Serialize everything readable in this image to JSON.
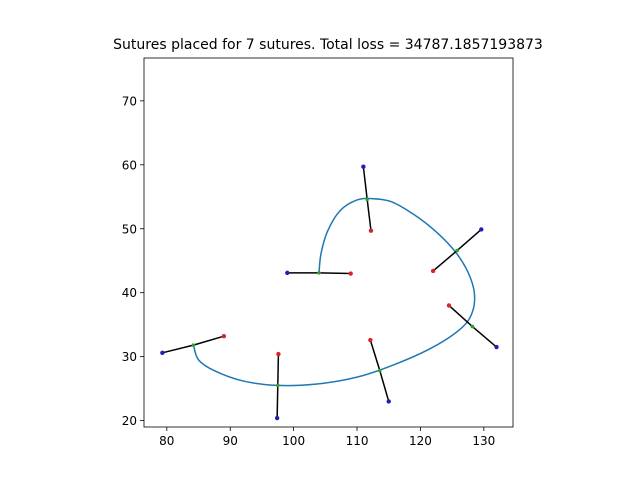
{
  "chart_data": {
    "type": "line",
    "title": "Sutures placed for 7 sutures. Total loss = 34787.1857193873",
    "xlabel": "",
    "ylabel": "",
    "xlim": [
      76.4,
      134.6
    ],
    "ylim": [
      19.0,
      76.7
    ],
    "x_ticks": [
      80,
      90,
      100,
      110,
      120,
      130
    ],
    "y_ticks": [
      20,
      30,
      40,
      50,
      60,
      70
    ],
    "grid": false,
    "colors": {
      "curve": "#1f77b4",
      "suture": "#000000",
      "insertion": "#d62728",
      "extraction": "#1f1fb4"
    },
    "wound_curve": [
      {
        "x": 104.0,
        "y": 43.0
      },
      {
        "x": 104.3,
        "y": 46.0
      },
      {
        "x": 105.3,
        "y": 49.5
      },
      {
        "x": 107.3,
        "y": 52.8
      },
      {
        "x": 110.0,
        "y": 54.5
      },
      {
        "x": 112.5,
        "y": 54.7
      },
      {
        "x": 115.5,
        "y": 54.2
      },
      {
        "x": 119.0,
        "y": 52.2
      },
      {
        "x": 122.5,
        "y": 49.5
      },
      {
        "x": 125.5,
        "y": 46.4
      },
      {
        "x": 127.5,
        "y": 43.2
      },
      {
        "x": 128.5,
        "y": 40.0
      },
      {
        "x": 128.2,
        "y": 37.0
      },
      {
        "x": 126.5,
        "y": 34.5
      },
      {
        "x": 122.0,
        "y": 31.5
      },
      {
        "x": 116.0,
        "y": 28.8
      },
      {
        "x": 110.0,
        "y": 26.8
      },
      {
        "x": 103.5,
        "y": 25.7
      },
      {
        "x": 97.5,
        "y": 25.5
      },
      {
        "x": 92.0,
        "y": 26.2
      },
      {
        "x": 87.5,
        "y": 27.8
      },
      {
        "x": 85.0,
        "y": 29.5
      },
      {
        "x": 84.2,
        "y": 31.8
      }
    ],
    "sutures": [
      {
        "insertion": {
          "x": 89.0,
          "y": 33.2
        },
        "center": {
          "x": 84.2,
          "y": 31.8
        },
        "extraction": {
          "x": 79.3,
          "y": 30.6
        }
      },
      {
        "insertion": {
          "x": 97.6,
          "y": 30.4
        },
        "center": {
          "x": 97.5,
          "y": 25.5
        },
        "extraction": {
          "x": 97.4,
          "y": 20.4
        }
      },
      {
        "insertion": {
          "x": 109.0,
          "y": 43.0
        },
        "center": {
          "x": 104.0,
          "y": 43.1
        },
        "extraction": {
          "x": 99.0,
          "y": 43.1
        }
      },
      {
        "insertion": {
          "x": 112.2,
          "y": 49.7
        },
        "center": {
          "x": 111.6,
          "y": 54.6
        },
        "extraction": {
          "x": 111.0,
          "y": 59.7
        }
      },
      {
        "insertion": {
          "x": 112.1,
          "y": 32.6
        },
        "center": {
          "x": 113.6,
          "y": 27.8
        },
        "extraction": {
          "x": 115.0,
          "y": 23.0
        }
      },
      {
        "insertion": {
          "x": 122.0,
          "y": 43.4
        },
        "center": {
          "x": 125.8,
          "y": 46.6
        },
        "extraction": {
          "x": 129.6,
          "y": 49.9
        }
      },
      {
        "insertion": {
          "x": 124.5,
          "y": 38.0
        },
        "center": {
          "x": 128.2,
          "y": 34.7
        },
        "extraction": {
          "x": 132.0,
          "y": 31.5
        }
      }
    ]
  }
}
